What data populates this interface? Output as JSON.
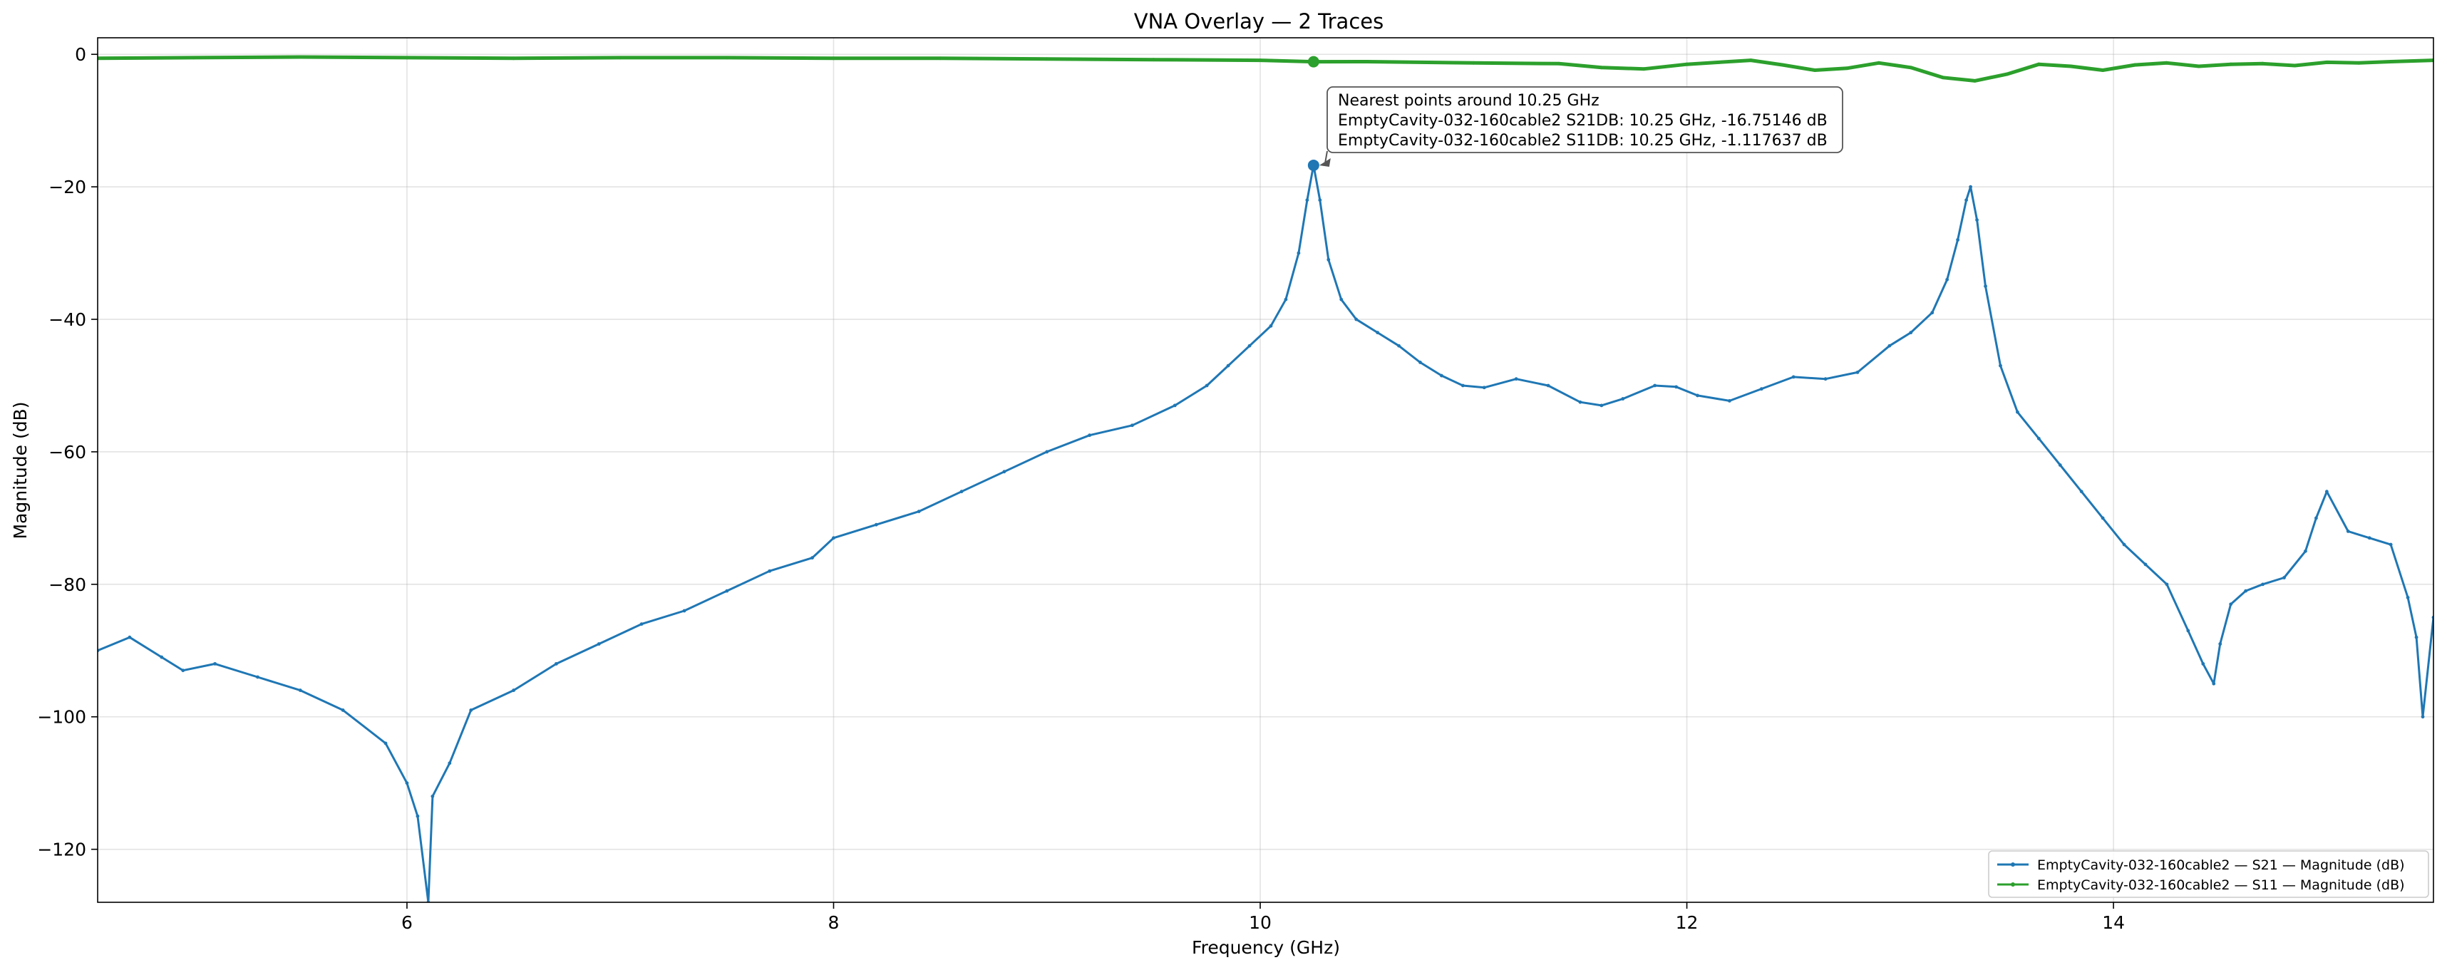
{
  "chart_data": {
    "type": "line",
    "title": "VNA Overlay — 2 Traces",
    "xlabel": "Frequency (GHz)",
    "ylabel": "Magnitude (dB)",
    "xlim": [
      4.55,
      15.5
    ],
    "ylim": [
      -128,
      2.5
    ],
    "xticks": [
      6,
      8,
      10,
      12,
      14
    ],
    "yticks": [
      0,
      -20,
      -40,
      -60,
      -80,
      -100,
      -120
    ],
    "grid": true,
    "legend_position": "bottom-right",
    "series": [
      {
        "name": "EmptyCavity-032-160cable2 — S21 — Magnitude (dB)",
        "color": "#1f77b4",
        "x": [
          4.55,
          4.7,
          4.85,
          4.95,
          5.1,
          5.3,
          5.5,
          5.7,
          5.9,
          6.0,
          6.05,
          6.1,
          6.12,
          6.2,
          6.3,
          6.5,
          6.7,
          6.9,
          7.1,
          7.3,
          7.5,
          7.7,
          7.9,
          8.0,
          8.2,
          8.4,
          8.6,
          8.8,
          9.0,
          9.2,
          9.4,
          9.6,
          9.75,
          9.85,
          9.95,
          10.05,
          10.12,
          10.18,
          10.22,
          10.25,
          10.28,
          10.32,
          10.38,
          10.45,
          10.55,
          10.65,
          10.75,
          10.85,
          10.95,
          11.05,
          11.2,
          11.35,
          11.5,
          11.6,
          11.7,
          11.85,
          11.95,
          12.05,
          12.2,
          12.35,
          12.5,
          12.65,
          12.8,
          12.95,
          13.05,
          13.15,
          13.22,
          13.27,
          13.31,
          13.33,
          13.36,
          13.4,
          13.47,
          13.55,
          13.65,
          13.75,
          13.85,
          13.95,
          14.05,
          14.15,
          14.25,
          14.35,
          14.42,
          14.47,
          14.5,
          14.55,
          14.62,
          14.7,
          14.8,
          14.9,
          14.95,
          15.0,
          15.1,
          15.2,
          15.3,
          15.38,
          15.42,
          15.45,
          15.5
        ],
        "y": [
          -90,
          -88,
          -91,
          -93,
          -92,
          -94,
          -96,
          -99,
          -104,
          -110,
          -115,
          -128,
          -112,
          -107,
          -99,
          -96,
          -92,
          -89,
          -86,
          -84,
          -81,
          -78,
          -76,
          -73,
          -71,
          -69,
          -66,
          -63,
          -60,
          -57.5,
          -56,
          -53,
          -50,
          -47,
          -44,
          -41,
          -37,
          -30,
          -22,
          -16.75,
          -22,
          -31,
          -37,
          -40,
          -42,
          -44,
          -46.5,
          -48.5,
          -50,
          -50.3,
          -49,
          -50,
          -52.5,
          -53,
          -52,
          -50,
          -50.2,
          -51.5,
          -52.3,
          -50.5,
          -48.7,
          -49,
          -48,
          -44,
          -42,
          -39,
          -34,
          -28,
          -22,
          -20,
          -25,
          -35,
          -47,
          -54,
          -58,
          -62,
          -66,
          -70,
          -74,
          -77,
          -80,
          -87,
          -92,
          -95,
          -89,
          -83,
          -81,
          -80,
          -79,
          -75,
          -70,
          -66,
          -72,
          -73,
          -74,
          -82,
          -88,
          -100,
          -85
        ]
      },
      {
        "name": "EmptyCavity-032-160cable2 — S11 — Magnitude (dB)",
        "color": "#2ca02c",
        "x": [
          4.55,
          5.0,
          5.5,
          6.0,
          6.5,
          7.0,
          7.5,
          8.0,
          8.5,
          9.0,
          9.5,
          10.0,
          10.25,
          10.5,
          11.0,
          11.4,
          11.6,
          11.8,
          12.0,
          12.15,
          12.3,
          12.45,
          12.6,
          12.75,
          12.9,
          13.05,
          13.2,
          13.35,
          13.5,
          13.65,
          13.8,
          13.95,
          14.1,
          14.25,
          14.4,
          14.55,
          14.7,
          14.85,
          15.0,
          15.15,
          15.3,
          15.5
        ],
        "y": [
          -0.6,
          -0.5,
          -0.4,
          -0.5,
          -0.6,
          -0.5,
          -0.5,
          -0.6,
          -0.6,
          -0.7,
          -0.8,
          -0.9,
          -1.12,
          -1.1,
          -1.3,
          -1.4,
          -2.0,
          -2.2,
          -1.5,
          -1.2,
          -0.9,
          -1.6,
          -2.4,
          -2.1,
          -1.3,
          -2.0,
          -3.5,
          -4.0,
          -3.0,
          -1.5,
          -1.8,
          -2.4,
          -1.6,
          -1.3,
          -1.8,
          -1.5,
          -1.4,
          -1.7,
          -1.2,
          -1.3,
          -1.1,
          -0.9
        ]
      }
    ],
    "markers": [
      {
        "series": 0,
        "x": 10.25,
        "y": -16.75146
      },
      {
        "series": 1,
        "x": 10.25,
        "y": -1.117637
      }
    ],
    "annotation": {
      "lines": [
        "Nearest points around 10.25 GHz",
        "EmptyCavity-032-160cable2 S21DB: 10.25 GHz, -16.75146 dB",
        "EmptyCavity-032-160cable2 S11DB: 10.25 GHz, -1.117637 dB"
      ],
      "anchor_x": 10.25,
      "anchor_y": -16.75146
    }
  }
}
